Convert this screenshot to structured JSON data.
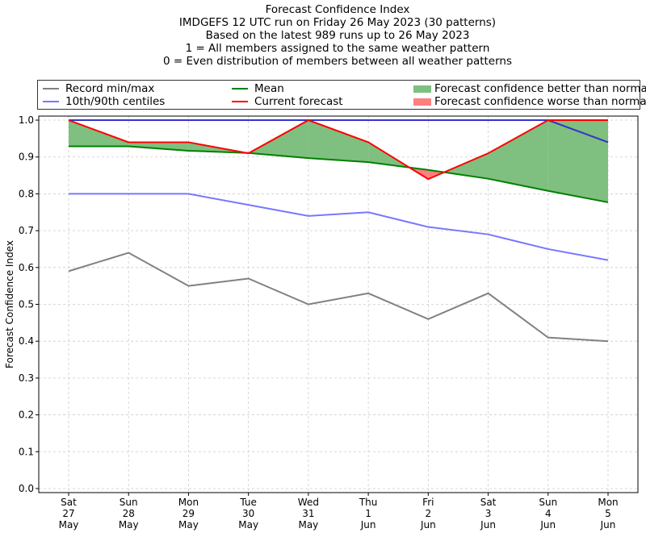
{
  "chart_data": {
    "type": "line",
    "title": [
      "Forecast Confidence Index",
      "IMDGEFS 12 UTC run on Friday 26 May 2023 (30 patterns)",
      "Based on the latest 989 runs up to 26 May 2023",
      "1 = All members assigned to the same weather pattern",
      "0 = Even distribution of members between all weather patterns"
    ],
    "ylabel": "Forecast Confidence Index",
    "xlabel": "",
    "ylim": [
      -0.011,
      1.011
    ],
    "yticks": [
      "0.0",
      "0.1",
      "0.2",
      "0.3",
      "0.4",
      "0.5",
      "0.6",
      "0.7",
      "0.8",
      "0.9",
      "1.0"
    ],
    "categories": [
      [
        "Sat",
        "27",
        "May"
      ],
      [
        "Sun",
        "28",
        "May"
      ],
      [
        "Mon",
        "29",
        "May"
      ],
      [
        "Tue",
        "30",
        "May"
      ],
      [
        "Wed",
        "31",
        "May"
      ],
      [
        "Thu",
        "1",
        "Jun"
      ],
      [
        "Fri",
        "2",
        "Jun"
      ],
      [
        "Sat",
        "3",
        "Jun"
      ],
      [
        "Sun",
        "4",
        "Jun"
      ],
      [
        "Mon",
        "5",
        "Jun"
      ]
    ],
    "grid": true,
    "legend_position": "top (outside, 3 columns)",
    "series": [
      {
        "key": "record_min",
        "name": "Record min/max",
        "color": "#808080",
        "values": [
          0.59,
          0.64,
          0.55,
          0.57,
          0.5,
          0.53,
          0.46,
          0.53,
          0.41,
          0.4
        ]
      },
      {
        "key": "record_max",
        "name": "Record min/max",
        "color": "#808080",
        "values": [
          1,
          1,
          1,
          1,
          1,
          1,
          1,
          1,
          1,
          1
        ]
      },
      {
        "key": "p10",
        "name": "10th/90th centiles",
        "color": "#7777ff",
        "values": [
          0.8,
          0.8,
          0.8,
          0.77,
          0.74,
          0.75,
          0.71,
          0.69,
          0.65,
          0.62
        ]
      },
      {
        "key": "p90",
        "name": "10th/90th centiles",
        "color": "#3333cc",
        "values": [
          1,
          1,
          1,
          1,
          1,
          1,
          1,
          1,
          1,
          0.94
        ]
      },
      {
        "key": "mean",
        "name": "Mean",
        "color": "#008000",
        "values": [
          0.929,
          0.929,
          0.917,
          0.911,
          0.897,
          0.886,
          0.865,
          0.841,
          0.808,
          0.777
        ]
      },
      {
        "key": "current",
        "name": "Current forecast",
        "color": "#ff0000",
        "values": [
          1.0,
          0.94,
          0.94,
          0.91,
          1.0,
          0.94,
          0.84,
          0.91,
          1.0,
          1.0
        ]
      }
    ],
    "fills": {
      "better": {
        "name": "Forecast confidence better than normal",
        "color": "#7fbf7f"
      },
      "worse": {
        "name": "Forecast confidence worse than normal",
        "color": "#ff7f7f"
      }
    }
  }
}
